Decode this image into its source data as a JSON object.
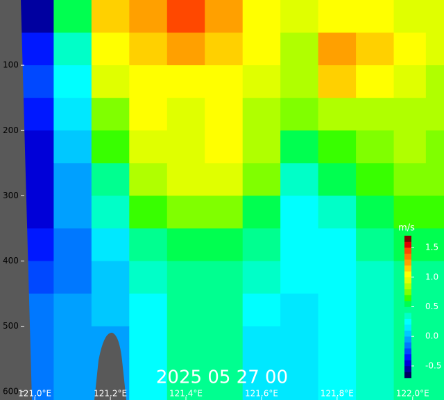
{
  "chart_data": {
    "type": "contour",
    "title": "2025 05 27 00",
    "x": [
      121.0,
      121.1,
      121.2,
      121.3,
      121.4,
      121.5,
      121.6,
      121.7,
      121.8,
      121.9,
      122.0,
      122.07
    ],
    "y": [
      25,
      75,
      125,
      175,
      225,
      275,
      325,
      375,
      425,
      475,
      525,
      575
    ],
    "values": [
      [
        -0.6,
        0.5,
        1.1,
        1.2,
        1.4,
        1.2,
        1.0,
        0.9,
        1.0,
        1.0,
        0.9,
        0.9
      ],
      [
        -0.4,
        0.3,
        1.0,
        1.1,
        1.2,
        1.1,
        1.0,
        0.8,
        1.2,
        1.1,
        1.0,
        0.9
      ],
      [
        -0.3,
        0.2,
        0.9,
        1.0,
        1.0,
        1.0,
        0.9,
        0.8,
        1.1,
        1.0,
        0.9,
        0.8
      ],
      [
        -0.4,
        0.1,
        0.7,
        1.0,
        0.9,
        1.0,
        0.8,
        0.7,
        0.8,
        0.8,
        0.8,
        0.8
      ],
      [
        -0.5,
        0.0,
        0.6,
        0.9,
        0.9,
        1.0,
        0.8,
        0.5,
        0.6,
        0.7,
        0.8,
        0.7
      ],
      [
        -0.5,
        -0.1,
        0.4,
        0.8,
        0.9,
        0.9,
        0.7,
        0.3,
        0.5,
        0.6,
        0.7,
        0.7
      ],
      [
        -0.5,
        -0.1,
        0.3,
        0.6,
        0.7,
        0.7,
        0.5,
        0.2,
        0.3,
        0.5,
        0.6,
        0.6
      ],
      [
        -0.4,
        -0.2,
        0.1,
        0.4,
        0.5,
        0.5,
        0.4,
        0.2,
        0.2,
        0.4,
        0.5,
        0.5
      ],
      [
        -0.3,
        -0.2,
        0.0,
        0.3,
        0.4,
        0.4,
        0.3,
        0.2,
        0.2,
        0.3,
        0.4,
        0.4
      ],
      [
        -0.2,
        -0.1,
        0.0,
        0.2,
        0.4,
        0.4,
        0.2,
        0.1,
        0.2,
        0.3,
        0.4,
        0.4
      ],
      [
        -0.2,
        -0.1,
        -0.1,
        0.2,
        0.4,
        0.4,
        0.1,
        0.1,
        0.2,
        0.3,
        0.4,
        0.4
      ],
      [
        -0.2,
        -0.1,
        -0.1,
        0.2,
        0.4,
        0.4,
        0.1,
        0.1,
        0.2,
        0.3,
        0.4,
        0.4
      ]
    ],
    "xlim": [
      120.963,
      122.083
    ],
    "xticks": [
      {
        "value": 121.0,
        "label": "121.0°E"
      },
      {
        "value": 121.2,
        "label": "121.2°E"
      },
      {
        "value": 121.4,
        "label": "121.4°E"
      },
      {
        "value": 121.6,
        "label": "121.6°E"
      },
      {
        "value": 121.8,
        "label": "121.8°E"
      },
      {
        "value": 122.0,
        "label": "122.0°E"
      }
    ],
    "ylim": [
      0,
      613
    ],
    "yticks": [
      100,
      200,
      300,
      400,
      500,
      600
    ],
    "colorbar": {
      "label": "m/s",
      "lim": [
        -0.7,
        1.7
      ],
      "ticks": [
        1.5,
        {
          "value": 1.0,
          "label": "1.0"
        },
        0.5,
        {
          "value": 0.0,
          "label": "0.0"
        },
        -0.5
      ],
      "colors": [
        "#000060",
        "#0000a0",
        "#0000d8",
        "#0018ff",
        "#0048ff",
        "#0078ff",
        "#00a0ff",
        "#00c8ff",
        "#00e8ff",
        "#00ffff",
        "#00ffc8",
        "#00ff90",
        "#00ff50",
        "#38ff00",
        "#80ff00",
        "#b0ff00",
        "#e0ff00",
        "#ffff00",
        "#ffd000",
        "#ffa000",
        "#ff7800",
        "#ff4800",
        "#e00000",
        "#800000"
      ]
    }
  }
}
